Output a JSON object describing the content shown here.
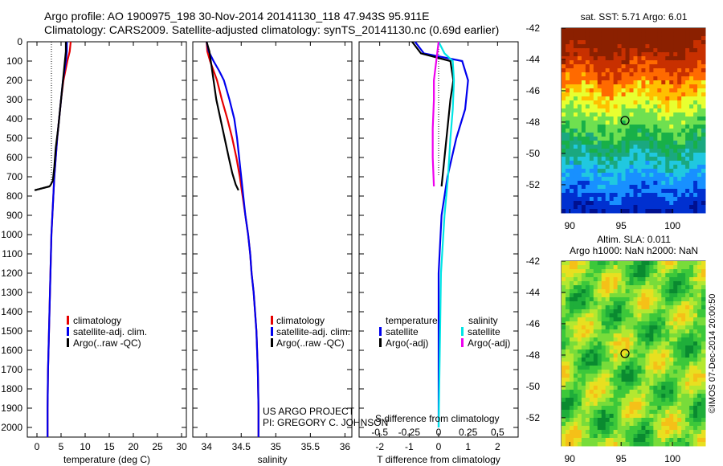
{
  "title": {
    "line1": "Argo profile: AO 1900975_198 30-Nov-2014 20141130_118 47.943S 95.911E",
    "line2": "Climatology: CARS2009. Satellite-adjusted climatology: synTS_20141130.nc (0.69d earlier)"
  },
  "colors": {
    "climatology": "#e60000",
    "satellite": "#0000ee",
    "argo": "#000000",
    "sat_salinity": "#00e5e5",
    "argo_salinity": "#ee00ee"
  },
  "depth_ticks": [
    "0",
    "100",
    "200",
    "300",
    "400",
    "500",
    "600",
    "700",
    "800",
    "900",
    "1000",
    "1100",
    "1200",
    "1300",
    "1400",
    "1500",
    "1600",
    "1700",
    "1800",
    "1900",
    "2000"
  ],
  "panels": {
    "temperature": {
      "xlabel": "temperature (deg C)",
      "xticks": [
        "0",
        "5",
        "10",
        "15",
        "20",
        "25",
        "30"
      ],
      "legend": [
        "climatology",
        "satellite-adj. clim.",
        "Argo(..raw -QC)"
      ]
    },
    "salinity": {
      "xlabel": "salinity",
      "xticks": [
        "34",
        "34.5",
        "35",
        "35.5",
        "36"
      ],
      "legend": [
        "climatology",
        "satellite-adj. clim.",
        "Argo(..raw -QC)"
      ],
      "credit1": "US ARGO PROJECT",
      "credit2": "PI: GREGORY C. JOHNSON"
    },
    "difference": {
      "xlabel": "T difference from climatology",
      "top_label": "S difference from climatology",
      "xticks": [
        "-2",
        "-1",
        "0",
        "1",
        "2"
      ],
      "s_ticks": [
        "-0.5",
        "-0.25",
        "0",
        "0.25",
        "0.5"
      ],
      "legend_head_t": "temperature",
      "legend_head_s": "salinity",
      "legend_t": [
        "satellite",
        "Argo(-adj)"
      ],
      "legend_s": [
        "satellite",
        "Argo(-adj)"
      ]
    }
  },
  "maps": {
    "sst_title": "sat. SST: 5.71  Argo: 6.01",
    "sla_title1": "Altim. SLA: 0.011",
    "sla_title2": "Argo h1000: NaN h2000: NaN",
    "yticks": [
      "-42",
      "-44",
      "-46",
      "-48",
      "-50",
      "-52"
    ],
    "xticks": [
      "90",
      "95",
      "100"
    ],
    "watermark": "©IMOS 07-Dec-2014 20:00:50"
  },
  "chart_data": [
    {
      "type": "line",
      "title": "",
      "xlabel": "temperature (deg C)",
      "ylabel": "",
      "xlim": [
        -2,
        31
      ],
      "ylim": [
        2050,
        0
      ],
      "series": [
        {
          "name": "climatology",
          "x": [
            7.0,
            6.8,
            6.3,
            5.9,
            5.5,
            5.0,
            4.6,
            4.2,
            3.9,
            3.6,
            3.4,
            3.2,
            3.0,
            2.9,
            2.8,
            2.7,
            2.6,
            2.5,
            2.4,
            2.3,
            2.2,
            2.2
          ],
          "y": [
            0,
            50,
            100,
            150,
            200,
            300,
            400,
            500,
            600,
            700,
            800,
            900,
            1000,
            1100,
            1200,
            1300,
            1400,
            1500,
            1600,
            1700,
            1900,
            2050
          ]
        },
        {
          "name": "satellite-adj. clim.",
          "x": [
            6.2,
            6.2,
            6.0,
            5.7,
            5.4,
            5.0,
            4.6,
            4.2,
            3.9,
            3.6,
            3.4,
            3.2,
            3.0,
            2.9,
            2.8,
            2.7,
            2.6,
            2.5,
            2.4,
            2.3,
            2.2,
            2.2
          ],
          "y": [
            0,
            50,
            100,
            150,
            200,
            300,
            400,
            500,
            600,
            700,
            800,
            900,
            1000,
            1100,
            1200,
            1300,
            1400,
            1500,
            1600,
            1700,
            1900,
            2050
          ]
        },
        {
          "name": "Argo(..raw -QC)",
          "x": [
            6.0,
            6.0,
            5.8,
            5.4,
            5.2,
            4.8,
            4.4,
            3.9,
            3.6,
            3.3,
            2.9,
            2.6,
            -0.5
          ],
          "y": [
            0,
            50,
            100,
            200,
            250,
            350,
            450,
            550,
            650,
            720,
            740,
            750,
            770
          ]
        }
      ]
    },
    {
      "type": "line",
      "title": "",
      "xlabel": "salinity",
      "ylabel": "",
      "xlim": [
        33.8,
        36.1
      ],
      "ylim": [
        2050,
        0
      ],
      "series": [
        {
          "name": "climatology",
          "x": [
            34.0,
            34.01,
            34.05,
            34.1,
            34.15,
            34.22,
            34.3,
            34.37,
            34.43,
            34.48,
            34.52,
            34.56,
            34.6,
            34.63,
            34.65,
            34.68,
            34.7,
            34.72,
            34.73,
            34.74,
            34.75,
            34.75
          ],
          "y": [
            0,
            50,
            100,
            150,
            200,
            300,
            400,
            500,
            600,
            700,
            800,
            900,
            1000,
            1100,
            1200,
            1300,
            1400,
            1500,
            1600,
            1700,
            1900,
            2050
          ]
        },
        {
          "name": "satellite-adj. clim.",
          "x": [
            34.0,
            34.03,
            34.1,
            34.18,
            34.25,
            34.33,
            34.4,
            34.44,
            34.47,
            34.5,
            34.53,
            34.56,
            34.6,
            34.63,
            34.65,
            34.68,
            34.7,
            34.72,
            34.73,
            34.74,
            34.75,
            34.75
          ],
          "y": [
            0,
            50,
            100,
            150,
            200,
            300,
            400,
            500,
            600,
            700,
            800,
            900,
            1000,
            1100,
            1200,
            1300,
            1400,
            1500,
            1600,
            1700,
            1900,
            2050
          ]
        },
        {
          "name": "Argo(..raw -QC)",
          "x": [
            34.0,
            34.04,
            34.06,
            34.1,
            34.14,
            34.2,
            34.26,
            34.32,
            34.37,
            34.42,
            34.46
          ],
          "y": [
            0,
            50,
            100,
            200,
            300,
            400,
            500,
            600,
            680,
            740,
            770
          ]
        }
      ]
    },
    {
      "type": "line",
      "title": "",
      "xlabel": "T difference from climatology",
      "ylabel": "",
      "xlim": [
        -2.7,
        2.7
      ],
      "ylim": [
        2050,
        0
      ],
      "series": [
        {
          "name": "temperature satellite",
          "x": [
            -0.8,
            -0.5,
            0.8,
            1.0,
            0.9,
            0.6,
            0.3,
            0.1,
            0.0,
            0.0
          ],
          "y": [
            0,
            60,
            100,
            200,
            350,
            500,
            700,
            900,
            1200,
            2000
          ]
        },
        {
          "name": "temperature Argo(-adj)",
          "x": [
            -0.9,
            -0.6,
            0.4,
            0.5,
            0.4,
            0.3,
            0.2,
            0.1
          ],
          "y": [
            0,
            60,
            100,
            200,
            300,
            450,
            600,
            750
          ]
        },
        {
          "name": "salinity satellite",
          "x": [
            0.0,
            0.05,
            0.12,
            0.13,
            0.12,
            0.1,
            0.08,
            0.05,
            0.02,
            0.0
          ],
          "y": [
            0,
            60,
            100,
            200,
            350,
            500,
            700,
            900,
            1200,
            2000
          ]
        },
        {
          "name": "salinity Argo(-adj)",
          "x": [
            0.0,
            -0.02,
            -0.04,
            -0.04,
            -0.05,
            -0.05,
            -0.04
          ],
          "y": [
            0,
            100,
            200,
            300,
            450,
            600,
            750
          ]
        }
      ]
    }
  ]
}
